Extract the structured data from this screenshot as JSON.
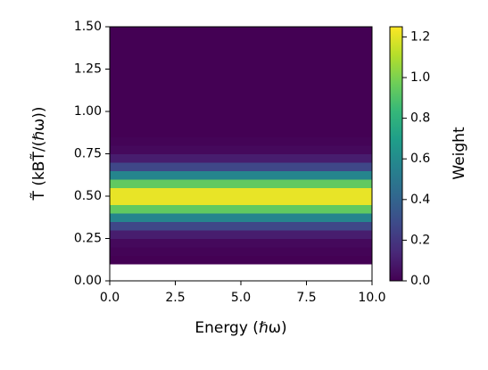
{
  "chart_data": {
    "type": "heatmap",
    "xlabel": "Energy (ℏω)",
    "ylabel": "T̃ (kBT̃/(ℏω))",
    "colorbar_label": "Weight",
    "xlim": [
      0,
      10
    ],
    "ylim": [
      0,
      1.5
    ],
    "clim": [
      0,
      1.25
    ],
    "xticks": [
      {
        "value": 0,
        "label": "0.0"
      },
      2.5,
      {
        "value": 5,
        "label": "5.0"
      },
      7.5,
      {
        "value": 10,
        "label": "10.0"
      }
    ],
    "yticks": [
      {
        "value": 0,
        "label": "0.00"
      },
      0.25,
      {
        "value": 0.5,
        "label": "0.50"
      },
      0.75,
      {
        "value": 1,
        "label": "1.00"
      },
      1.25,
      {
        "value": 1.5,
        "label": "1.50"
      }
    ],
    "cticks": [
      {
        "value": 0,
        "label": "0.0"
      },
      0.2,
      0.4,
      0.6,
      0.8,
      {
        "value": 1,
        "label": "1.0"
      },
      1.2
    ],
    "colormap": "viridis",
    "y_bins": [
      0.1,
      0.15,
      0.2,
      0.25,
      0.3,
      0.35,
      0.4,
      0.45,
      0.5,
      0.55,
      0.6,
      0.65,
      0.7,
      0.75,
      0.8,
      0.85,
      0.9,
      0.95,
      1.0,
      1.05,
      1.1,
      1.15,
      1.2,
      1.25,
      1.3,
      1.35,
      1.4,
      1.45,
      1.5
    ],
    "values": [
      0.0,
      0.01,
      0.03,
      0.1,
      0.27,
      0.57,
      0.94,
      1.21,
      1.21,
      0.94,
      0.57,
      0.27,
      0.1,
      0.03,
      0.01,
      0,
      0,
      0,
      0,
      0,
      0,
      0,
      0,
      0,
      0,
      0,
      0,
      0
    ]
  }
}
